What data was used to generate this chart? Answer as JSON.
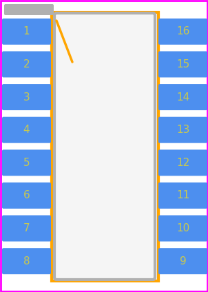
{
  "bg_color": "#ffffff",
  "border_color": "#ff00ff",
  "body_outline_color": "#ffa500",
  "body_fill_color": "#ffffff",
  "inner_rect_color": "#b0b0b0",
  "inner_fill_color": "#f5f5f5",
  "pin_color": "#4d8fef",
  "pin_num_color": "#c8c850",
  "left_pins": [
    1,
    2,
    3,
    4,
    5,
    6,
    7,
    8
  ],
  "right_pins": [
    16,
    15,
    14,
    13,
    12,
    11,
    10,
    9
  ],
  "notch_color": "#ffa500",
  "ref_pill_color": "#b0b0b0",
  "border_lw": 2,
  "body_lw": 3,
  "inner_lw": 3
}
